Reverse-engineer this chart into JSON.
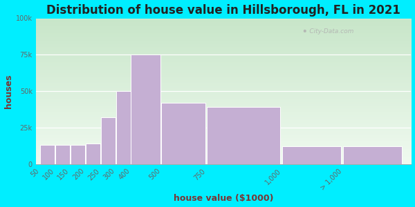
{
  "title": "Distribution of house value in Hillsborough, FL in 2021",
  "xlabel": "house value ($1000)",
  "ylabel": "houses",
  "bar_labels": [
    "50",
    "100",
    "150",
    "200",
    "250",
    "300",
    "400",
    "500",
    "750",
    "1,000",
    "> 1,000"
  ],
  "bar_values": [
    13000,
    13000,
    13000,
    14000,
    32000,
    50000,
    75000,
    42000,
    39000,
    12000,
    12000
  ],
  "bar_positions": [
    0,
    1,
    2,
    3,
    4,
    5,
    6,
    8,
    11,
    16,
    20
  ],
  "bar_widths": [
    1,
    1,
    1,
    1,
    1,
    1,
    2,
    3,
    5,
    4,
    4
  ],
  "bar_color": "#c5afd3",
  "bar_edgecolor": "#ffffff",
  "ylim": [
    0,
    100000
  ],
  "yticks": [
    0,
    25000,
    50000,
    75000,
    100000
  ],
  "ytick_labels": [
    "0",
    "25k",
    "50k",
    "75k",
    "100k"
  ],
  "xlim": [
    -0.3,
    24.5
  ],
  "bg_outer": "#00eeff",
  "bg_grad_top": "#c8e6c9",
  "bg_grad_bottom": "#e8f5e9",
  "title_fontsize": 12,
  "axis_label_fontsize": 9,
  "tick_fontsize": 7,
  "watermark": "City-Data.com",
  "grid_color": "#ffffff",
  "tick_color": "#666666",
  "label_color": "#7a3535",
  "title_color": "#222222"
}
